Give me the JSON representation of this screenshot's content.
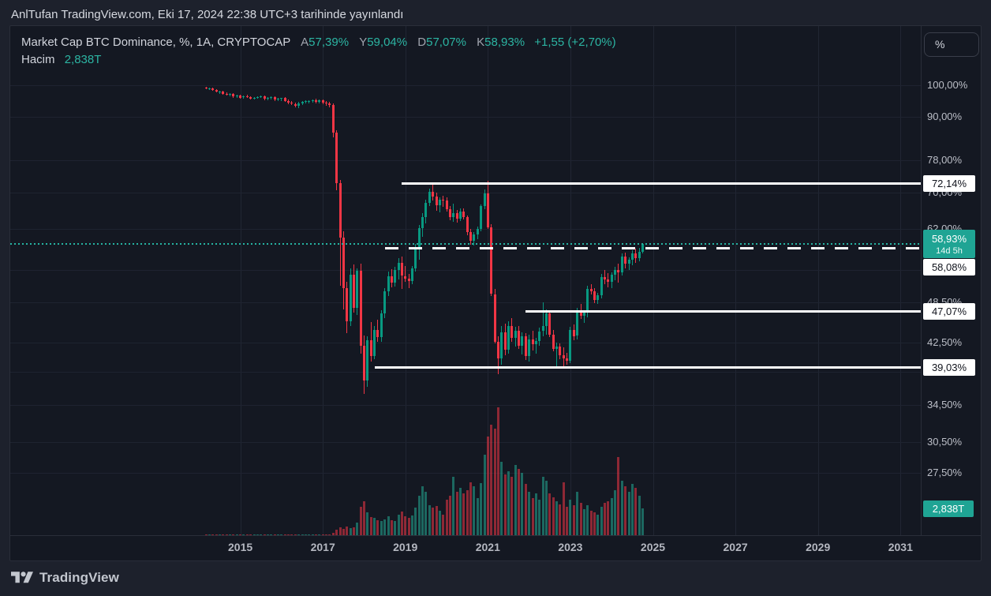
{
  "header": {
    "title": "AnlTufan TradingView.com, Eki 17, 2024 22:38 UTC+3 tarihinde yayınlandı"
  },
  "legend": {
    "symbol_line": "Market Cap BTC Dominance, %, 1A, CRYPTOCAP",
    "ohlc": [
      {
        "label": "A",
        "value": "57,39%"
      },
      {
        "label": "Y",
        "value": "59,04%"
      },
      {
        "label": "D",
        "value": "57,07%"
      },
      {
        "label": "K",
        "value": "58,93%"
      }
    ],
    "change": "+1,55 (+2,70%)",
    "volume_label": "Hacim",
    "volume_value": "2,838T"
  },
  "price_axis": {
    "unit_button": "%",
    "ticks": [
      {
        "label": "100,00%",
        "value": 100
      },
      {
        "label": "90,00%",
        "value": 90
      },
      {
        "label": "78,00%",
        "value": 78
      },
      {
        "label": "70,00%",
        "value": 70
      },
      {
        "label": "62,00%",
        "value": 62
      },
      {
        "label": "48,50%",
        "value": 48.5
      },
      {
        "label": "42,50%",
        "value": 42.5
      },
      {
        "label": "34,50%",
        "value": 34.5
      },
      {
        "label": "30,50%",
        "value": 30.5
      },
      {
        "label": "27,50%",
        "value": 27.5
      }
    ],
    "badges": [
      {
        "label": "72,14%",
        "value": 72.14,
        "stacked_below_price": false
      },
      {
        "label": "58,08%",
        "value": 58.08,
        "stacked_below_price": true
      },
      {
        "label": "47,07%",
        "value": 47.07,
        "stacked_below_price": false
      },
      {
        "label": "39,03%",
        "value": 39.03,
        "stacked_below_price": false
      }
    ],
    "price_badge": {
      "label": "58,93%",
      "countdown": "14d 5h",
      "value": 58.93
    },
    "volume_badge": {
      "label": "2,838T",
      "value": 2.838
    }
  },
  "time_axis": {
    "labels": [
      {
        "label": "2015",
        "year": 2015
      },
      {
        "label": "2017",
        "year": 2017
      },
      {
        "label": "2019",
        "year": 2019
      },
      {
        "label": "2021",
        "year": 2021
      },
      {
        "label": "2023",
        "year": 2023
      },
      {
        "label": "2025",
        "year": 2025
      },
      {
        "label": "2027",
        "year": 2027
      },
      {
        "label": "2029",
        "year": 2029
      },
      {
        "label": "2031",
        "year": 2031
      }
    ]
  },
  "footer": {
    "brand": "TradingView"
  },
  "colors": {
    "up": "#089981",
    "down": "#f23645",
    "accent": "#2cb5a3",
    "badge_teal": "#1fa494",
    "background": "#1d212c",
    "chart_background": "#141822",
    "grid": "#212633",
    "drawing_line": "#ffffff"
  },
  "chart_data": {
    "type": "candlestick",
    "title": "Market Cap BTC Dominance",
    "exchange": "CRYPTOCAP",
    "interval": "1A",
    "unit": "%",
    "y_scale": "log",
    "x_visible_range": [
      "2013-06",
      "2032-06"
    ],
    "y_grid": [
      100,
      90,
      78,
      70,
      62,
      54,
      48.5,
      42.5,
      38.5,
      34.5,
      30.5,
      27.5
    ],
    "current": {
      "open": 57.39,
      "high": 59.04,
      "low": 57.07,
      "close": 58.93,
      "change_abs": "+1,55",
      "change_pct": "+2,70%",
      "volume_t": 2.838,
      "bar_time_left": "14d 5h"
    },
    "lines": [
      {
        "value": 72.14,
        "label": "72,14%",
        "style": "solid",
        "start": "2018-12"
      },
      {
        "value": 58.08,
        "label": "58,08%",
        "style": "dashed",
        "start": "2018-07"
      },
      {
        "value": 47.07,
        "label": "47,07%",
        "style": "solid",
        "start": "2021-12"
      },
      {
        "value": 39.03,
        "label": "39,03%",
        "style": "solid",
        "start": "2018-04"
      }
    ],
    "current_price_line": {
      "value": 58.93,
      "style": "dotted"
    },
    "volume_unit": "T",
    "columns": [
      "month",
      "open",
      "high",
      "low",
      "close",
      "volume_T"
    ],
    "candles": [
      [
        "2014-03",
        99.3,
        99.5,
        98.7,
        98.9,
        0.004
      ],
      [
        "2014-04",
        98.9,
        99.2,
        98.5,
        99.0,
        0.004
      ],
      [
        "2014-05",
        99.0,
        99.1,
        98.1,
        98.4,
        0.005
      ],
      [
        "2014-06",
        98.4,
        98.7,
        97.6,
        97.9,
        0.006
      ],
      [
        "2014-07",
        97.9,
        98.3,
        97.2,
        98.0,
        0.006
      ],
      [
        "2014-08",
        98.0,
        98.2,
        96.8,
        97.1,
        0.008
      ],
      [
        "2014-09",
        97.1,
        97.6,
        96.5,
        96.9,
        0.007
      ],
      [
        "2014-10",
        96.9,
        97.4,
        96.3,
        97.2,
        0.007
      ],
      [
        "2014-11",
        97.2,
        97.5,
        95.9,
        96.3,
        0.01
      ],
      [
        "2014-12",
        96.3,
        96.9,
        95.8,
        96.6,
        0.008
      ],
      [
        "2015-01",
        96.6,
        97.0,
        95.6,
        96.0,
        0.012
      ],
      [
        "2015-02",
        96.0,
        96.6,
        95.7,
        96.4,
        0.01
      ],
      [
        "2015-03",
        96.4,
        96.8,
        95.9,
        96.2,
        0.009
      ],
      [
        "2015-04",
        96.2,
        96.5,
        95.4,
        95.7,
        0.009
      ],
      [
        "2015-05",
        95.7,
        96.2,
        95.3,
        96.0,
        0.008
      ],
      [
        "2015-06",
        96.0,
        96.4,
        95.6,
        96.2,
        0.009
      ],
      [
        "2015-07",
        96.2,
        96.6,
        95.8,
        96.4,
        0.01
      ],
      [
        "2015-08",
        96.4,
        96.7,
        95.2,
        95.6,
        0.011
      ],
      [
        "2015-09",
        95.6,
        96.1,
        95.1,
        95.9,
        0.009
      ],
      [
        "2015-10",
        95.9,
        96.3,
        95.4,
        96.1,
        0.01
      ],
      [
        "2015-11",
        96.1,
        96.4,
        94.9,
        95.3,
        0.014
      ],
      [
        "2015-12",
        95.3,
        95.9,
        94.8,
        95.6,
        0.012
      ],
      [
        "2016-01",
        95.6,
        96.0,
        94.9,
        95.8,
        0.013
      ],
      [
        "2016-02",
        95.8,
        96.1,
        94.6,
        94.9,
        0.015
      ],
      [
        "2016-03",
        94.9,
        95.4,
        93.9,
        94.3,
        0.017
      ],
      [
        "2016-04",
        94.3,
        94.8,
        93.6,
        94.0,
        0.016
      ],
      [
        "2016-05",
        94.0,
        94.5,
        92.9,
        93.4,
        0.02
      ],
      [
        "2016-06",
        93.4,
        94.6,
        92.6,
        94.2,
        0.024
      ],
      [
        "2016-07",
        94.2,
        94.9,
        93.7,
        94.6,
        0.018
      ],
      [
        "2016-08",
        94.6,
        95.1,
        94.0,
        94.8,
        0.016
      ],
      [
        "2016-09",
        94.8,
        95.2,
        94.2,
        95.0,
        0.014
      ],
      [
        "2016-10",
        95.0,
        95.5,
        94.4,
        95.2,
        0.015
      ],
      [
        "2016-11",
        95.2,
        95.6,
        94.1,
        94.5,
        0.018
      ],
      [
        "2016-12",
        94.5,
        95.3,
        94.0,
        95.1,
        0.022
      ],
      [
        "2017-01",
        95.1,
        95.5,
        93.8,
        94.4,
        0.05
      ],
      [
        "2017-02",
        94.4,
        94.9,
        93.5,
        94.1,
        0.06
      ],
      [
        "2017-03",
        94.1,
        94.6,
        92.8,
        93.6,
        0.09
      ],
      [
        "2017-04",
        93.6,
        94.2,
        84.0,
        85.4,
        0.28
      ],
      [
        "2017-05",
        85.4,
        86.1,
        70.5,
        72.1,
        0.55
      ],
      [
        "2017-06",
        72.1,
        73.0,
        51.3,
        60.2,
        0.8
      ],
      [
        "2017-07",
        60.2,
        61.5,
        47.4,
        50.9,
        0.65
      ],
      [
        "2017-08",
        50.9,
        52.0,
        43.8,
        45.6,
        0.9
      ],
      [
        "2017-09",
        45.6,
        54.4,
        44.9,
        53.2,
        0.75
      ],
      [
        "2017-10",
        53.2,
        55.0,
        46.9,
        47.7,
        0.85
      ],
      [
        "2017-11",
        47.7,
        54.3,
        46.5,
        53.9,
        1.3
      ],
      [
        "2017-12",
        53.9,
        55.2,
        40.9,
        42.0,
        3.0
      ],
      [
        "2018-01",
        42.0,
        43.5,
        35.8,
        37.4,
        3.6
      ],
      [
        "2018-02",
        37.4,
        43.4,
        36.6,
        42.8,
        2.4
      ],
      [
        "2018-03",
        42.8,
        45.5,
        39.8,
        40.6,
        1.9
      ],
      [
        "2018-04",
        40.6,
        44.9,
        40.2,
        44.3,
        1.8
      ],
      [
        "2018-05",
        44.3,
        45.8,
        42.6,
        43.2,
        1.6
      ],
      [
        "2018-06",
        43.2,
        47.3,
        42.5,
        46.8,
        1.5
      ],
      [
        "2018-07",
        46.8,
        50.9,
        46.0,
        50.3,
        1.7
      ],
      [
        "2018-08",
        50.3,
        53.8,
        49.6,
        52.9,
        2.0
      ],
      [
        "2018-09",
        52.9,
        54.2,
        51.0,
        51.8,
        1.6
      ],
      [
        "2018-10",
        51.8,
        54.6,
        51.2,
        54.1,
        1.5
      ],
      [
        "2018-11",
        54.1,
        56.2,
        52.4,
        55.4,
        2.2
      ],
      [
        "2018-12",
        55.4,
        56.5,
        50.7,
        53.0,
        2.5
      ],
      [
        "2019-01",
        53.0,
        54.8,
        51.9,
        52.5,
        2.0
      ],
      [
        "2019-02",
        52.5,
        53.4,
        50.9,
        52.1,
        1.8
      ],
      [
        "2019-03",
        52.1,
        54.8,
        51.5,
        54.3,
        2.1
      ],
      [
        "2019-04",
        54.3,
        58.9,
        53.8,
        58.4,
        2.9
      ],
      [
        "2019-05",
        58.4,
        62.8,
        55.9,
        62.1,
        4.2
      ],
      [
        "2019-06",
        62.1,
        65.3,
        60.3,
        64.5,
        5.2
      ],
      [
        "2019-07",
        64.5,
        68.3,
        63.2,
        67.6,
        4.6
      ],
      [
        "2019-08",
        67.6,
        70.9,
        66.9,
        70.2,
        3.2
      ],
      [
        "2019-09",
        70.2,
        72.1,
        68.1,
        69.1,
        2.9
      ],
      [
        "2019-10",
        69.1,
        70.0,
        65.9,
        67.0,
        3.1
      ],
      [
        "2019-11",
        67.0,
        68.9,
        65.4,
        68.4,
        2.6
      ],
      [
        "2019-12",
        68.4,
        69.3,
        66.8,
        68.1,
        2.2
      ],
      [
        "2020-01",
        68.1,
        68.9,
        65.6,
        66.2,
        3.8
      ],
      [
        "2020-02",
        66.2,
        66.9,
        63.8,
        64.5,
        4.2
      ],
      [
        "2020-03",
        64.5,
        67.5,
        63.4,
        65.3,
        6.2
      ],
      [
        "2020-04",
        65.3,
        66.0,
        63.3,
        64.1,
        4.6
      ],
      [
        "2020-05",
        64.1,
        66.4,
        63.6,
        65.7,
        5.0
      ],
      [
        "2020-06",
        65.7,
        66.3,
        63.9,
        64.4,
        4.4
      ],
      [
        "2020-07",
        64.4,
        64.9,
        60.7,
        61.3,
        4.8
      ],
      [
        "2020-08",
        61.3,
        62.0,
        58.8,
        59.6,
        5.6
      ],
      [
        "2020-09",
        59.6,
        61.4,
        58.7,
        60.8,
        5.2
      ],
      [
        "2020-10",
        60.8,
        62.4,
        59.9,
        62.0,
        3.9
      ],
      [
        "2020-11",
        62.0,
        67.3,
        61.5,
        66.9,
        5.5
      ],
      [
        "2020-12",
        66.9,
        70.6,
        66.2,
        69.7,
        8.5
      ],
      [
        "2021-01",
        69.7,
        72.7,
        61.9,
        62.3,
        10.4
      ],
      [
        "2021-02",
        62.3,
        63.0,
        49.6,
        49.9,
        11.7
      ],
      [
        "2021-03",
        49.9,
        50.8,
        42.3,
        42.6,
        11.3
      ],
      [
        "2021-04",
        42.6,
        43.4,
        38.2,
        40.3,
        13.5
      ],
      [
        "2021-05",
        40.3,
        44.9,
        39.4,
        43.9,
        7.8
      ],
      [
        "2021-06",
        43.9,
        45.2,
        40.7,
        41.5,
        6.4
      ],
      [
        "2021-07",
        41.5,
        45.6,
        40.9,
        44.9,
        6.8
      ],
      [
        "2021-08",
        44.9,
        46.1,
        42.6,
        43.1,
        6.2
      ],
      [
        "2021-09",
        43.1,
        44.8,
        41.9,
        44.2,
        7.4
      ],
      [
        "2021-10",
        44.2,
        44.9,
        41.6,
        42.0,
        7.0
      ],
      [
        "2021-11",
        42.0,
        43.9,
        40.8,
        43.3,
        6.6
      ],
      [
        "2021-12",
        43.3,
        43.8,
        40.1,
        40.6,
        5.4
      ],
      [
        "2022-01",
        40.6,
        43.6,
        39.8,
        42.9,
        4.6
      ],
      [
        "2022-02",
        42.9,
        44.2,
        41.3,
        42.2,
        3.9
      ],
      [
        "2022-03",
        42.2,
        43.1,
        40.9,
        42.7,
        4.4
      ],
      [
        "2022-04",
        42.7,
        44.6,
        42.0,
        44.1,
        3.8
      ],
      [
        "2022-05",
        44.1,
        48.6,
        43.4,
        44.9,
        6.2
      ],
      [
        "2022-06",
        44.9,
        47.4,
        43.6,
        46.8,
        5.8
      ],
      [
        "2022-07",
        46.8,
        47.2,
        43.2,
        43.6,
        4.4
      ],
      [
        "2022-08",
        43.6,
        44.3,
        41.2,
        41.6,
        4.0
      ],
      [
        "2022-09",
        41.6,
        42.4,
        38.9,
        41.9,
        3.6
      ],
      [
        "2022-10",
        41.9,
        42.3,
        40.2,
        40.7,
        3.3
      ],
      [
        "2022-11",
        40.7,
        41.8,
        38.9,
        40.3,
        5.6
      ],
      [
        "2022-12",
        40.3,
        41.0,
        39.4,
        40.0,
        3.0
      ],
      [
        "2023-01",
        40.0,
        44.8,
        39.7,
        44.3,
        3.8
      ],
      [
        "2023-02",
        44.3,
        45.1,
        42.8,
        43.4,
        3.2
      ],
      [
        "2023-03",
        43.4,
        47.6,
        42.9,
        47.1,
        4.6
      ],
      [
        "2023-04",
        47.1,
        48.3,
        45.9,
        46.4,
        3.4
      ],
      [
        "2023-05",
        46.4,
        47.3,
        45.3,
        46.9,
        2.8
      ],
      [
        "2023-06",
        46.9,
        51.3,
        46.2,
        50.8,
        3.2
      ],
      [
        "2023-07",
        50.8,
        51.6,
        49.8,
        50.3,
        2.6
      ],
      [
        "2023-08",
        50.3,
        50.9,
        48.4,
        48.9,
        2.4
      ],
      [
        "2023-09",
        48.9,
        50.1,
        48.3,
        49.7,
        2.2
      ],
      [
        "2023-10",
        49.7,
        53.3,
        49.2,
        52.8,
        3.0
      ],
      [
        "2023-11",
        52.8,
        54.0,
        51.6,
        52.4,
        3.4
      ],
      [
        "2023-12",
        52.4,
        53.5,
        51.1,
        51.9,
        3.6
      ],
      [
        "2024-01",
        51.9,
        53.7,
        50.9,
        53.2,
        3.9
      ],
      [
        "2024-02",
        53.2,
        54.6,
        52.3,
        54.1,
        4.8
      ],
      [
        "2024-03",
        54.1,
        55.2,
        51.9,
        53.6,
        8.3
      ],
      [
        "2024-04",
        53.6,
        57.1,
        53.1,
        56.6,
        5.8
      ],
      [
        "2024-05",
        56.6,
        57.3,
        54.3,
        55.2,
        5.2
      ],
      [
        "2024-06",
        55.2,
        56.4,
        54.0,
        55.9,
        4.6
      ],
      [
        "2024-07",
        55.9,
        57.7,
        54.9,
        57.2,
        5.4
      ],
      [
        "2024-08",
        57.2,
        58.0,
        55.4,
        56.3,
        5.0
      ],
      [
        "2024-09",
        56.3,
        58.2,
        55.6,
        57.4,
        4.2
      ],
      [
        "2024-10",
        57.39,
        59.04,
        57.07,
        58.93,
        2.838
      ]
    ]
  }
}
